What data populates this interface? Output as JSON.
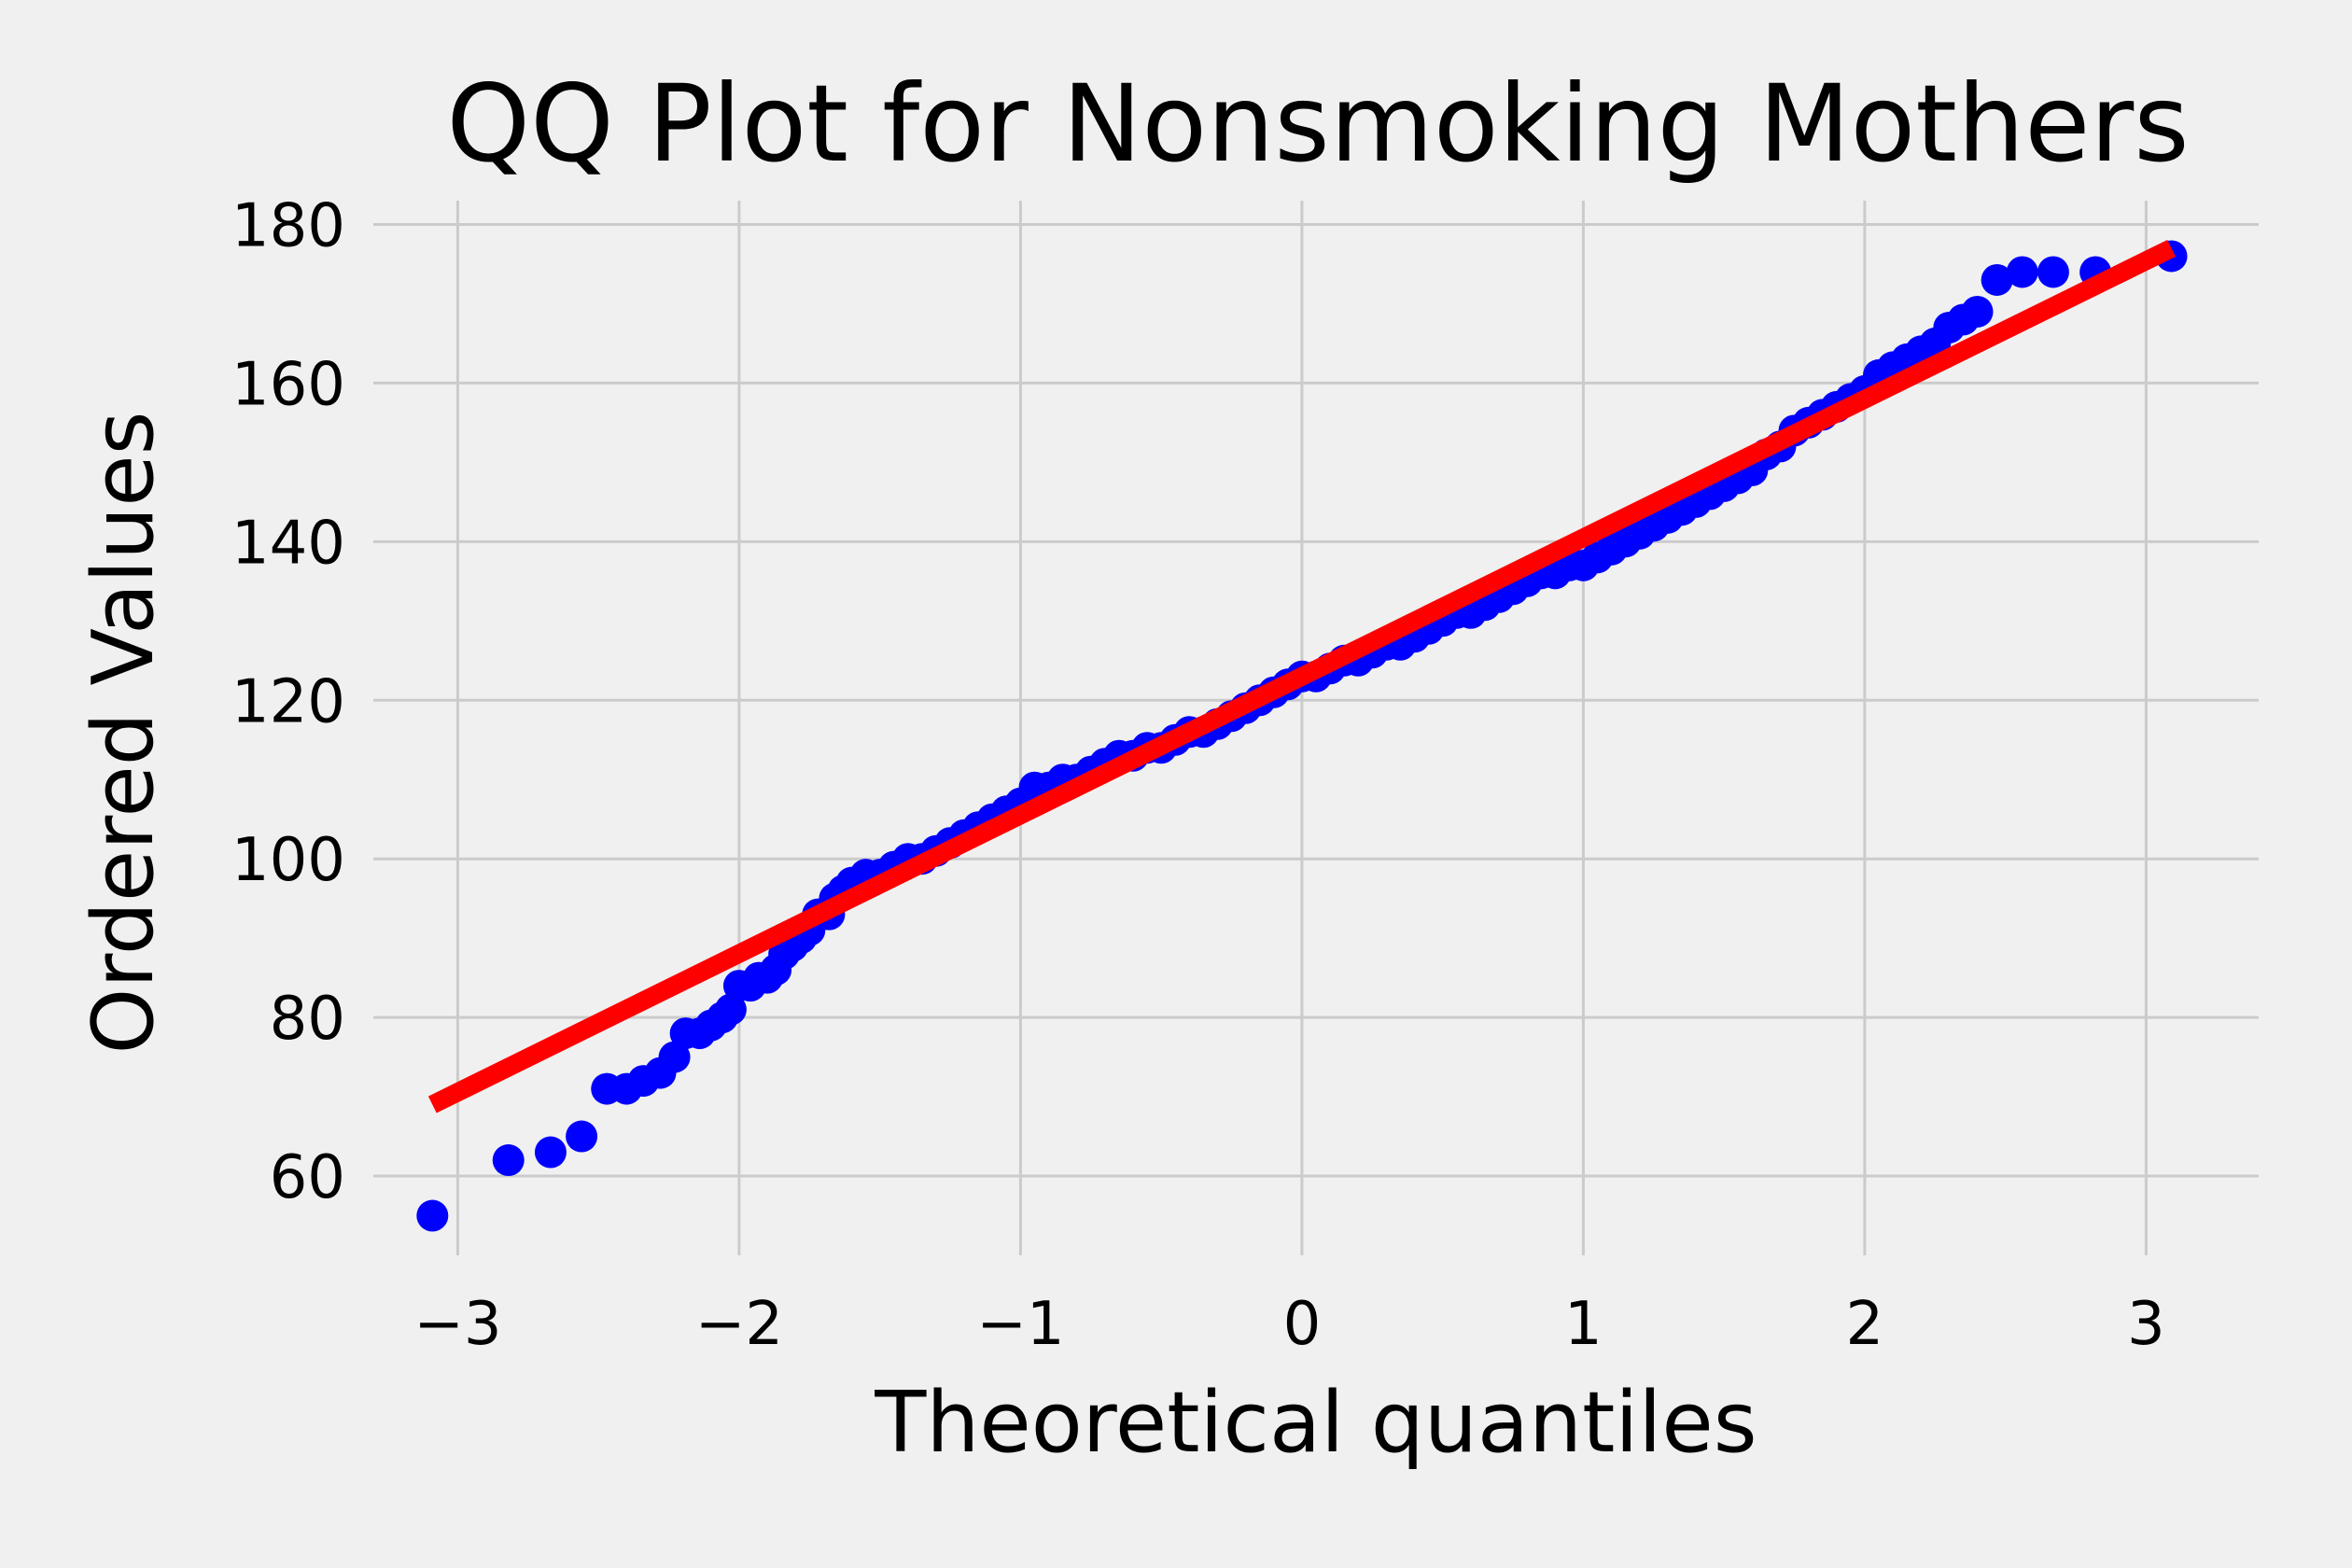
{
  "chart_data": {
    "type": "scatter",
    "title": "QQ Plot for Nonsmoking Mothers",
    "xlabel": "Theoretical quantiles",
    "ylabel": "Ordered Values",
    "xlim": [
      -3.3,
      3.4
    ],
    "ylim": [
      50,
      183
    ],
    "x_ticks": [
      -3,
      -2,
      -1,
      0,
      1,
      2,
      3
    ],
    "x_tick_labels": [
      "−3",
      "−2",
      "−1",
      "0",
      "1",
      "2",
      "3"
    ],
    "y_ticks": [
      60,
      80,
      100,
      120,
      140,
      160,
      180
    ],
    "y_tick_labels": [
      "60",
      "80",
      "100",
      "120",
      "140",
      "160",
      "180"
    ],
    "grid": true,
    "legend": false,
    "series": [
      {
        "type": "scatter",
        "color": "#0000ff",
        "points": [
          [
            -3.09,
            55
          ],
          [
            -2.82,
            62
          ],
          [
            -2.67,
            63
          ],
          [
            -2.56,
            65
          ],
          [
            -2.47,
            71
          ],
          [
            -2.4,
            71
          ],
          [
            -2.34,
            72
          ],
          [
            -2.28,
            73
          ],
          [
            -2.23,
            75
          ],
          [
            -2.19,
            78
          ],
          [
            -2.14,
            78
          ],
          [
            -2.1,
            79
          ],
          [
            -2.06,
            80
          ],
          [
            -2.03,
            81
          ],
          [
            -2.0,
            84
          ],
          [
            -1.96,
            84
          ],
          [
            -1.93,
            85
          ],
          [
            -1.9,
            85
          ],
          [
            -1.87,
            86
          ],
          [
            -1.84,
            88
          ],
          [
            -1.81,
            89
          ],
          [
            -1.78,
            90
          ],
          [
            -1.75,
            91
          ],
          [
            -1.72,
            93
          ],
          [
            -1.68,
            93
          ],
          [
            -1.66,
            95
          ],
          [
            -1.63,
            96
          ],
          [
            -1.6,
            97
          ],
          [
            -1.55,
            98
          ],
          [
            -1.5,
            98
          ],
          [
            -1.45,
            99
          ],
          [
            -1.4,
            100
          ],
          [
            -1.35,
            100
          ],
          [
            -1.3,
            101
          ],
          [
            -1.25,
            102
          ],
          [
            -1.2,
            103
          ],
          [
            -1.15,
            104
          ],
          [
            -1.1,
            105
          ],
          [
            -1.05,
            106
          ],
          [
            -1.0,
            107
          ],
          [
            -0.95,
            109
          ],
          [
            -0.9,
            109
          ],
          [
            -0.85,
            110
          ],
          [
            -0.8,
            110
          ],
          [
            -0.75,
            111
          ],
          [
            -0.7,
            112
          ],
          [
            -0.65,
            113
          ],
          [
            -0.6,
            113
          ],
          [
            -0.55,
            114
          ],
          [
            -0.5,
            114
          ],
          [
            -0.45,
            115
          ],
          [
            -0.4,
            116
          ],
          [
            -0.35,
            116
          ],
          [
            -0.3,
            117
          ],
          [
            -0.25,
            118
          ],
          [
            -0.2,
            119
          ],
          [
            -0.15,
            120
          ],
          [
            -0.1,
            121
          ],
          [
            -0.05,
            122
          ],
          [
            0.0,
            123
          ],
          [
            0.05,
            123
          ],
          [
            0.1,
            124
          ],
          [
            0.15,
            125
          ],
          [
            0.2,
            125
          ],
          [
            0.25,
            126
          ],
          [
            0.3,
            127
          ],
          [
            0.35,
            127
          ],
          [
            0.4,
            128
          ],
          [
            0.45,
            129
          ],
          [
            0.5,
            130
          ],
          [
            0.55,
            131
          ],
          [
            0.6,
            131
          ],
          [
            0.65,
            132
          ],
          [
            0.7,
            133
          ],
          [
            0.75,
            134
          ],
          [
            0.8,
            135
          ],
          [
            0.85,
            136
          ],
          [
            0.9,
            136
          ],
          [
            0.95,
            137
          ],
          [
            1.0,
            137
          ],
          [
            1.05,
            138
          ],
          [
            1.1,
            139
          ],
          [
            1.15,
            140
          ],
          [
            1.2,
            141
          ],
          [
            1.25,
            142
          ],
          [
            1.3,
            143
          ],
          [
            1.35,
            144
          ],
          [
            1.4,
            145
          ],
          [
            1.45,
            146
          ],
          [
            1.5,
            147
          ],
          [
            1.55,
            148
          ],
          [
            1.6,
            149
          ],
          [
            1.65,
            151
          ],
          [
            1.7,
            152
          ],
          [
            1.75,
            154
          ],
          [
            1.8,
            155
          ],
          [
            1.85,
            156
          ],
          [
            1.9,
            157
          ],
          [
            1.95,
            158
          ],
          [
            2.0,
            159
          ],
          [
            2.05,
            161
          ],
          [
            2.1,
            162
          ],
          [
            2.15,
            163
          ],
          [
            2.2,
            164
          ],
          [
            2.25,
            165
          ],
          [
            2.3,
            167
          ],
          [
            2.35,
            168
          ],
          [
            2.4,
            169
          ],
          [
            2.47,
            173
          ],
          [
            2.56,
            174
          ],
          [
            2.67,
            174
          ],
          [
            2.82,
            174
          ],
          [
            3.09,
            176
          ]
        ]
      },
      {
        "type": "line",
        "color": "#ff0000",
        "points": [
          [
            -3.09,
            69
          ],
          [
            3.09,
            177
          ]
        ]
      }
    ]
  }
}
